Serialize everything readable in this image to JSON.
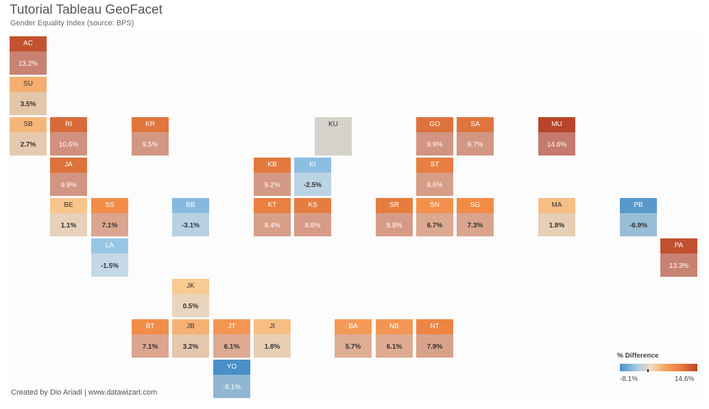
{
  "title": "Tutorial Tableau GeoFacet",
  "subtitle": "Gender Equality Index (source: BPS)",
  "footer": "Created by Dio Ariadi | www.datawizart.com",
  "legend": {
    "title": "% Difference",
    "min_label": "-8.1%",
    "max_label": "14.6%",
    "colors": [
      "#4a8fc7",
      "#9cc8e3",
      "#f0dcc3",
      "#f4a45a",
      "#e8763c",
      "#b8452a"
    ]
  },
  "chart_data": {
    "type": "geofacet-tile-map",
    "title": "Tutorial Tableau GeoFacet",
    "subtitle": "Gender Equality Index (source: BPS)",
    "measure": "% Difference",
    "range": [
      -8.1,
      14.6
    ],
    "tiles": [
      {
        "code": "AC",
        "row": 0,
        "col": 0,
        "value": 13.2,
        "label": "13.2%"
      },
      {
        "code": "SU",
        "row": 1,
        "col": 0,
        "value": 3.5,
        "label": "3.5%"
      },
      {
        "code": "SB",
        "row": 2,
        "col": 0,
        "value": 2.7,
        "label": "2.7%"
      },
      {
        "code": "RI",
        "row": 2,
        "col": 1,
        "value": 10.6,
        "label": "10.6%"
      },
      {
        "code": "KR",
        "row": 2,
        "col": 3,
        "value": 9.5,
        "label": "9.5%"
      },
      {
        "code": "KU",
        "row": 2,
        "col": 7.5,
        "value": null,
        "label": ""
      },
      {
        "code": "GO",
        "row": 2,
        "col": 10,
        "value": 9.9,
        "label": "9.9%"
      },
      {
        "code": "SA",
        "row": 2,
        "col": 11,
        "value": 9.7,
        "label": "9.7%"
      },
      {
        "code": "MU",
        "row": 2,
        "col": 13,
        "value": 14.6,
        "label": "14.6%"
      },
      {
        "code": "JA",
        "row": 3,
        "col": 1,
        "value": 9.9,
        "label": "9.9%"
      },
      {
        "code": "KB",
        "row": 3,
        "col": 6,
        "value": 9.2,
        "label": "9.2%"
      },
      {
        "code": "KI",
        "row": 3,
        "col": 7,
        "value": -2.5,
        "label": "-2.5%"
      },
      {
        "code": "ST",
        "row": 3,
        "col": 10,
        "value": 8.6,
        "label": "8.6%"
      },
      {
        "code": "BE",
        "row": 4,
        "col": 1,
        "value": 1.1,
        "label": "1.1%"
      },
      {
        "code": "SS",
        "row": 4,
        "col": 2,
        "value": 7.1,
        "label": "7.1%"
      },
      {
        "code": "BB",
        "row": 4,
        "col": 4,
        "value": -3.1,
        "label": "-3.1%"
      },
      {
        "code": "KT",
        "row": 4,
        "col": 6,
        "value": 8.4,
        "label": "8.4%"
      },
      {
        "code": "KS",
        "row": 4,
        "col": 7,
        "value": 8.8,
        "label": "8.8%"
      },
      {
        "code": "SR",
        "row": 4,
        "col": 9,
        "value": 8.8,
        "label": "8.8%"
      },
      {
        "code": "SN",
        "row": 4,
        "col": 10,
        "value": 6.7,
        "label": "6.7%"
      },
      {
        "code": "SG",
        "row": 4,
        "col": 11,
        "value": 7.3,
        "label": "7.3%"
      },
      {
        "code": "MA",
        "row": 4,
        "col": 13,
        "value": 1.8,
        "label": "1.8%"
      },
      {
        "code": "PB",
        "row": 4,
        "col": 15,
        "value": -6.9,
        "label": "-6.9%"
      },
      {
        "code": "LA",
        "row": 5,
        "col": 2,
        "value": -1.5,
        "label": "-1.5%"
      },
      {
        "code": "PA",
        "row": 5,
        "col": 16,
        "value": 13.3,
        "label": "13.3%"
      },
      {
        "code": "JK",
        "row": 6,
        "col": 4,
        "value": 0.5,
        "label": "0.5%"
      },
      {
        "code": "BT",
        "row": 7,
        "col": 3,
        "value": 7.1,
        "label": "7.1%"
      },
      {
        "code": "JB",
        "row": 7,
        "col": 4,
        "value": 3.2,
        "label": "3.2%"
      },
      {
        "code": "JT",
        "row": 7,
        "col": 5,
        "value": 6.1,
        "label": "6.1%"
      },
      {
        "code": "JI",
        "row": 7,
        "col": 6,
        "value": 1.8,
        "label": "1.8%"
      },
      {
        "code": "BA",
        "row": 7,
        "col": 8,
        "value": 5.7,
        "label": "5.7%"
      },
      {
        "code": "NB",
        "row": 7,
        "col": 9,
        "value": 6.1,
        "label": "6.1%"
      },
      {
        "code": "NT",
        "row": 7,
        "col": 10,
        "value": 7.9,
        "label": "7.9%"
      },
      {
        "code": "YO",
        "row": 8,
        "col": 5,
        "value": -8.1,
        "label": "-8.1%"
      }
    ]
  }
}
